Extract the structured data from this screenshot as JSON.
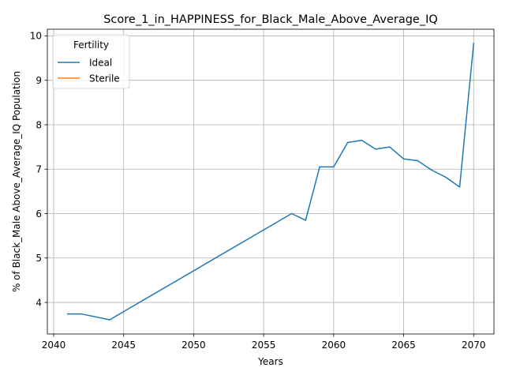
{
  "chart_data": {
    "type": "line",
    "title": "Score_1_in_HAPPINESS_for_Black_Male_Above_Average_IQ",
    "xlabel": "Years",
    "ylabel": "% of Black_Male Above_Average_IQ Population",
    "xlim": [
      2039.55,
      2071.45
    ],
    "ylim": [
      3.29,
      10.15
    ],
    "xticks": [
      2040,
      2045,
      2050,
      2055,
      2060,
      2065,
      2070
    ],
    "yticks": [
      4,
      5,
      6,
      7,
      8,
      9,
      10
    ],
    "grid": true,
    "legend": {
      "title": "Fertility",
      "placement": "top-left"
    },
    "series": [
      {
        "name": "Ideal",
        "color": "#1f77b4",
        "points": [
          [
            2041,
            3.74
          ],
          [
            2042,
            3.74
          ],
          [
            2044,
            3.61
          ],
          [
            2057,
            6.0
          ],
          [
            2058,
            5.85
          ],
          [
            2059,
            7.05
          ],
          [
            2060,
            7.05
          ],
          [
            2061,
            7.6
          ],
          [
            2062,
            7.65
          ],
          [
            2063,
            7.45
          ],
          [
            2064,
            7.5
          ],
          [
            2065,
            7.23
          ],
          [
            2066,
            7.19
          ],
          [
            2067,
            6.98
          ],
          [
            2068,
            6.82
          ],
          [
            2069,
            6.6
          ],
          [
            2070,
            9.83
          ]
        ]
      },
      {
        "name": "Sterile",
        "color": "#ff7f0e",
        "points": []
      }
    ]
  }
}
